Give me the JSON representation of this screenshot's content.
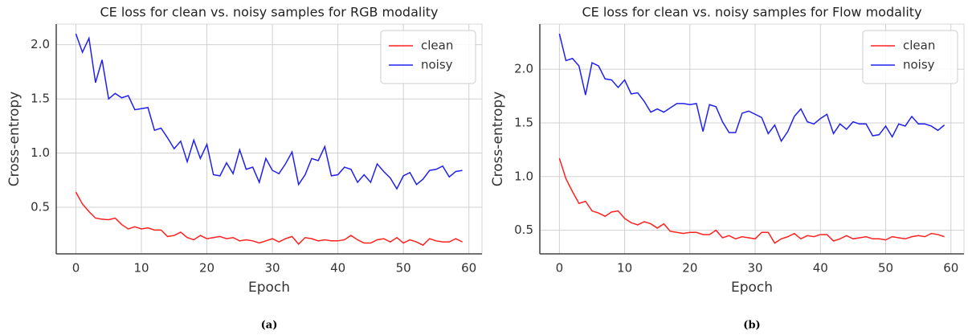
{
  "chart_data": [
    {
      "type": "line",
      "title": "CE loss for clean vs. noisy samples for RGB modality",
      "xlabel": "Epoch",
      "ylabel": "Cross-entropy",
      "caption": "(a)",
      "x": [
        0,
        1,
        2,
        3,
        4,
        5,
        6,
        7,
        8,
        9,
        10,
        11,
        12,
        13,
        14,
        15,
        16,
        17,
        18,
        19,
        20,
        21,
        22,
        23,
        24,
        25,
        26,
        27,
        28,
        29,
        30,
        31,
        32,
        33,
        34,
        35,
        36,
        37,
        38,
        39,
        40,
        41,
        42,
        43,
        44,
        45,
        46,
        47,
        48,
        49,
        50,
        51,
        52,
        53,
        54,
        55,
        56,
        57,
        58,
        59
      ],
      "series": [
        {
          "name": "clean",
          "color": "#ff2020",
          "values": [
            0.64,
            0.53,
            0.46,
            0.4,
            0.39,
            0.385,
            0.4,
            0.34,
            0.3,
            0.32,
            0.3,
            0.31,
            0.29,
            0.29,
            0.23,
            0.24,
            0.27,
            0.22,
            0.2,
            0.24,
            0.21,
            0.22,
            0.23,
            0.21,
            0.22,
            0.19,
            0.2,
            0.19,
            0.17,
            0.19,
            0.21,
            0.18,
            0.21,
            0.23,
            0.16,
            0.22,
            0.21,
            0.19,
            0.2,
            0.19,
            0.19,
            0.2,
            0.24,
            0.2,
            0.17,
            0.17,
            0.2,
            0.21,
            0.18,
            0.22,
            0.17,
            0.2,
            0.18,
            0.15,
            0.21,
            0.19,
            0.18,
            0.18,
            0.21,
            0.18
          ]
        },
        {
          "name": "noisy",
          "color": "#2020ee",
          "values": [
            2.1,
            1.93,
            2.06,
            1.65,
            1.86,
            1.5,
            1.55,
            1.51,
            1.53,
            1.4,
            1.41,
            1.42,
            1.21,
            1.23,
            1.14,
            1.04,
            1.11,
            0.92,
            1.12,
            0.95,
            1.08,
            0.8,
            0.79,
            0.91,
            0.81,
            1.03,
            0.85,
            0.87,
            0.73,
            0.95,
            0.84,
            0.81,
            0.9,
            1.01,
            0.71,
            0.8,
            0.95,
            0.93,
            1.06,
            0.79,
            0.8,
            0.87,
            0.85,
            0.73,
            0.8,
            0.73,
            0.9,
            0.83,
            0.77,
            0.67,
            0.79,
            0.82,
            0.71,
            0.76,
            0.84,
            0.85,
            0.88,
            0.78,
            0.83,
            0.84
          ]
        }
      ],
      "xlim": [
        -3,
        62
      ],
      "ylim": [
        0.07,
        2.19
      ],
      "xticks": [
        0,
        10,
        20,
        30,
        40,
        50,
        60
      ],
      "yticks": [
        0.5,
        {
          "value": 1,
          "label": "1.0"
        },
        1.5,
        {
          "value": 2,
          "label": "2.0"
        }
      ],
      "grid": true,
      "legend": "upper right"
    },
    {
      "type": "line",
      "title": "CE loss for clean vs. noisy samples for Flow modality",
      "xlabel": "Epoch",
      "ylabel": "Cross-entropy",
      "caption": "(b)",
      "x": [
        0,
        1,
        2,
        3,
        4,
        5,
        6,
        7,
        8,
        9,
        10,
        11,
        12,
        13,
        14,
        15,
        16,
        17,
        18,
        19,
        20,
        21,
        22,
        23,
        24,
        25,
        26,
        27,
        28,
        29,
        30,
        31,
        32,
        33,
        34,
        35,
        36,
        37,
        38,
        39,
        40,
        41,
        42,
        43,
        44,
        45,
        46,
        47,
        48,
        49,
        50,
        51,
        52,
        53,
        54,
        55,
        56,
        57,
        58,
        59
      ],
      "series": [
        {
          "name": "clean",
          "color": "#ff2020",
          "values": [
            1.17,
            0.98,
            0.86,
            0.75,
            0.77,
            0.68,
            0.66,
            0.63,
            0.67,
            0.68,
            0.61,
            0.57,
            0.55,
            0.58,
            0.56,
            0.52,
            0.56,
            0.49,
            0.48,
            0.47,
            0.48,
            0.48,
            0.46,
            0.46,
            0.5,
            0.43,
            0.45,
            0.42,
            0.44,
            0.43,
            0.42,
            0.48,
            0.48,
            0.38,
            0.42,
            0.44,
            0.47,
            0.42,
            0.45,
            0.44,
            0.46,
            0.46,
            0.4,
            0.42,
            0.45,
            0.42,
            0.43,
            0.44,
            0.42,
            0.42,
            0.41,
            0.44,
            0.43,
            0.42,
            0.44,
            0.45,
            0.44,
            0.47,
            0.46,
            0.44
          ]
        },
        {
          "name": "noisy",
          "color": "#2020ee",
          "values": [
            2.33,
            2.08,
            2.1,
            2.03,
            1.76,
            2.06,
            2.03,
            1.91,
            1.9,
            1.83,
            1.9,
            1.77,
            1.78,
            1.7,
            1.6,
            1.63,
            1.6,
            1.64,
            1.68,
            1.68,
            1.67,
            1.68,
            1.42,
            1.67,
            1.65,
            1.51,
            1.41,
            1.41,
            1.59,
            1.61,
            1.58,
            1.55,
            1.4,
            1.48,
            1.33,
            1.42,
            1.56,
            1.63,
            1.51,
            1.49,
            1.54,
            1.58,
            1.4,
            1.49,
            1.44,
            1.51,
            1.49,
            1.49,
            1.38,
            1.39,
            1.47,
            1.37,
            1.49,
            1.47,
            1.56,
            1.49,
            1.49,
            1.47,
            1.43,
            1.48
          ]
        }
      ],
      "xlim": [
        -3,
        62
      ],
      "ylim": [
        0.28,
        2.42
      ],
      "xticks": [
        0,
        10,
        20,
        30,
        40,
        50,
        60
      ],
      "yticks": [
        0.5,
        {
          "value": 1,
          "label": "1.0"
        },
        1.5,
        {
          "value": 2,
          "label": "2.0"
        }
      ],
      "grid": true,
      "legend": "upper right"
    }
  ]
}
